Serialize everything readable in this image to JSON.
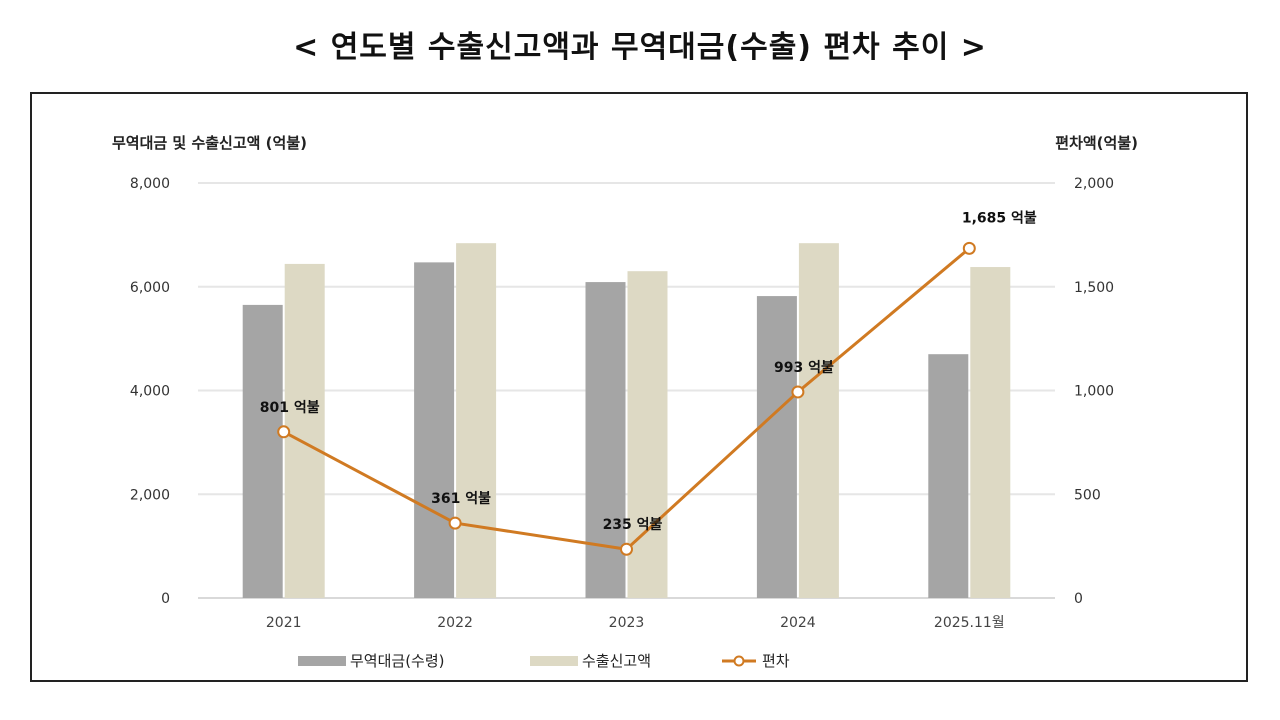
{
  "chart_data": {
    "type": "bar+line",
    "title": "< 연도별 수출신고액과 무역대금(수출) 편차 추이 >",
    "ylabel_left": "무역대금 및 수출신고액 (억불)",
    "ylabel_right": "편차액(억불)",
    "ylim_left": [
      0,
      8000
    ],
    "ylim_right": [
      0,
      2000
    ],
    "yticks_left": [
      "0",
      "2,000",
      "4,000",
      "6,000",
      "8,000"
    ],
    "yticks_right": [
      "0",
      "500",
      "1,000",
      "1,500",
      "2,000"
    ],
    "categories": [
      "2021",
      "2022",
      "2023",
      "2024",
      "2025.11월"
    ],
    "grid": true,
    "legend_placement": "bottom",
    "series": [
      {
        "name": "무역대금(수령)",
        "type": "bar",
        "axis": "left",
        "color": "#a5a5a5",
        "values": [
          5650,
          6470,
          6090,
          5820,
          4700
        ]
      },
      {
        "name": "수출신고액",
        "type": "bar",
        "axis": "left",
        "color": "#ddd9c4",
        "values": [
          6440,
          6840,
          6300,
          6840,
          6380
        ]
      },
      {
        "name": "편차",
        "type": "line",
        "axis": "right",
        "color": "#d07a22",
        "values": [
          801,
          361,
          235,
          993,
          1685
        ],
        "labels": [
          "801 억불",
          "361 억불",
          "235 억불",
          "993 억불",
          "1,685 억불"
        ]
      }
    ]
  }
}
